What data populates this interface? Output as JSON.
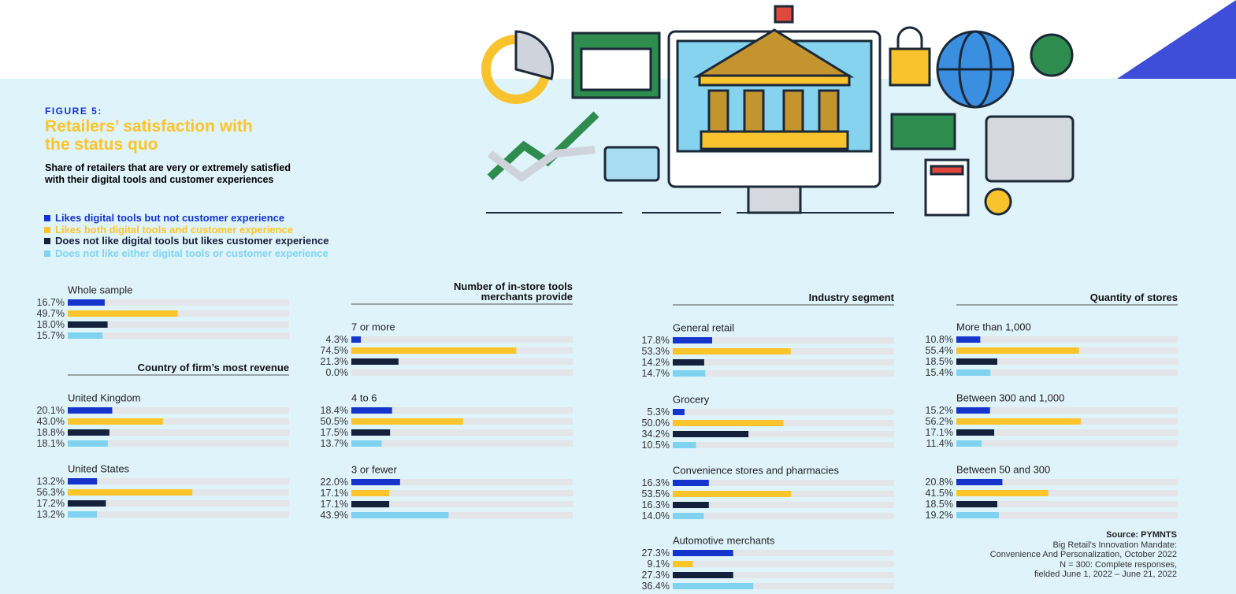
{
  "figure_label": "FIGURE 5:",
  "title": "Retailers’ satisfaction with the status quo",
  "subtitle": "Share of retailers that are very or extremely satisfied with their digital tools and customer experiences",
  "legend": [
    {
      "name": "Likes digital tools but not customer experience",
      "color": "#1434cb"
    },
    {
      "name": "Likes both digital tools and customer experience",
      "color": "#fbc42a"
    },
    {
      "name": "Does not like digital tools but likes customer experience",
      "color": "#14213d"
    },
    {
      "name": "Does not like either digital tools or customer experience",
      "color": "#7fd3f1"
    }
  ],
  "source": [
    "Source: PYMNTS",
    "Big Retail’s Innovation Mandate:",
    "Convenience And Personalization, October 2022",
    "N = 300: Complete responses,",
    "fielded June 1, 2022 – June 21, 2022"
  ],
  "chart_data": [
    {
      "type": "bar",
      "orientation": "horizontal",
      "xlim": [
        0,
        100
      ],
      "categories": [
        "Whole sample"
      ],
      "series": [
        {
          "values": [
            16.7
          ],
          "value_labels": [
            "16.7%"
          ]
        },
        {
          "values": [
            49.7
          ],
          "value_labels": [
            "49.7%"
          ]
        },
        {
          "values": [
            18.0
          ],
          "value_labels": [
            "18.0%"
          ]
        },
        {
          "values": [
            15.7
          ],
          "value_labels": [
            "15.7%"
          ]
        }
      ]
    },
    {
      "type": "bar",
      "orientation": "horizontal",
      "xlim": [
        0,
        100
      ],
      "title": "Country of firm’s most revenue",
      "categories": [
        "United Kingdom",
        "United States"
      ],
      "series": [
        {
          "values": [
            20.1,
            13.2
          ],
          "value_labels": [
            "20.1%",
            "13.2%"
          ]
        },
        {
          "values": [
            43.0,
            56.3
          ],
          "value_labels": [
            "43.0%",
            "56.3%"
          ]
        },
        {
          "values": [
            18.8,
            17.2
          ],
          "value_labels": [
            "18.8%",
            "17.2%"
          ]
        },
        {
          "values": [
            18.1,
            13.2
          ],
          "value_labels": [
            "18.1%",
            "13.2%"
          ]
        }
      ]
    },
    {
      "type": "bar",
      "orientation": "horizontal",
      "xlim": [
        0,
        100
      ],
      "title": "Number of in-store tools merchants provide",
      "categories": [
        "7 or more",
        "4 to 6",
        "3 or fewer"
      ],
      "series": [
        {
          "values": [
            4.3,
            18.4,
            22.0
          ],
          "value_labels": [
            "4.3%",
            "18.4%",
            "22.0%"
          ]
        },
        {
          "values": [
            74.5,
            50.5,
            17.1
          ],
          "value_labels": [
            "74.5%",
            "50.5%",
            "17.1%"
          ]
        },
        {
          "values": [
            21.3,
            17.5,
            17.1
          ],
          "value_labels": [
            "21.3%",
            "17.5%",
            "17.1%"
          ]
        },
        {
          "values": [
            0.0,
            13.7,
            43.9
          ],
          "value_labels": [
            "0.0%",
            "13.7%",
            "43.9%"
          ]
        }
      ]
    },
    {
      "type": "bar",
      "orientation": "horizontal",
      "xlim": [
        0,
        100
      ],
      "title": "Industry segment",
      "categories": [
        "General retail",
        "Grocery",
        "Convenience stores and pharmacies",
        "Automotive merchants"
      ],
      "series": [
        {
          "values": [
            17.8,
            5.3,
            16.3,
            27.3
          ],
          "value_labels": [
            "17.8%",
            "5.3%",
            "16.3%",
            "27.3%"
          ]
        },
        {
          "values": [
            53.3,
            50.0,
            53.5,
            9.1
          ],
          "value_labels": [
            "53.3%",
            "50.0%",
            "53.5%",
            "9.1%"
          ]
        },
        {
          "values": [
            14.2,
            34.2,
            16.3,
            27.3
          ],
          "value_labels": [
            "14.2%",
            "34.2%",
            "16.3%",
            "27.3%"
          ]
        },
        {
          "values": [
            14.7,
            10.5,
            14.0,
            36.4
          ],
          "value_labels": [
            "14.7%",
            "10.5%",
            "14.0%",
            "36.4%"
          ]
        }
      ]
    },
    {
      "type": "bar",
      "orientation": "horizontal",
      "xlim": [
        0,
        100
      ],
      "title": "Quantity of stores",
      "categories": [
        "More than 1,000",
        "Between 300 and 1,000",
        "Between 50 and 300"
      ],
      "series": [
        {
          "values": [
            10.8,
            15.2,
            20.8
          ],
          "value_labels": [
            "10.8%",
            "15.2%",
            "20.8%"
          ]
        },
        {
          "values": [
            55.4,
            56.2,
            41.5
          ],
          "value_labels": [
            "55.4%",
            "56.2%",
            "41.5%"
          ]
        },
        {
          "values": [
            18.5,
            17.1,
            18.5
          ],
          "value_labels": [
            "18.5%",
            "17.1%",
            "18.5%"
          ]
        },
        {
          "values": [
            15.4,
            11.4,
            19.2
          ],
          "value_labels": [
            "15.4%",
            "11.4%",
            "19.2%"
          ]
        }
      ]
    }
  ]
}
